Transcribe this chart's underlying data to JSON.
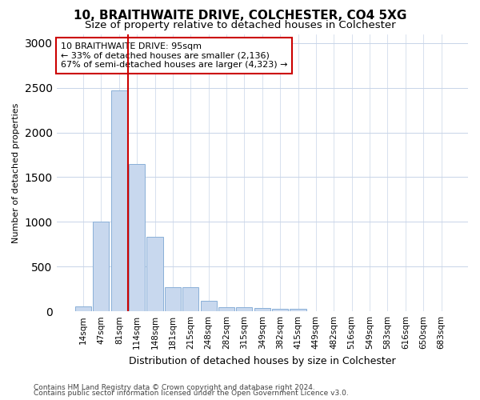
{
  "title1": "10, BRAITHWAITE DRIVE, COLCHESTER, CO4 5XG",
  "title2": "Size of property relative to detached houses in Colchester",
  "xlabel": "Distribution of detached houses by size in Colchester",
  "ylabel": "Number of detached properties",
  "categories": [
    "14sqm",
    "47sqm",
    "81sqm",
    "114sqm",
    "148sqm",
    "181sqm",
    "215sqm",
    "248sqm",
    "282sqm",
    "315sqm",
    "349sqm",
    "382sqm",
    "415sqm",
    "449sqm",
    "482sqm",
    "516sqm",
    "549sqm",
    "583sqm",
    "616sqm",
    "650sqm",
    "683sqm"
  ],
  "values": [
    55,
    1000,
    2470,
    1650,
    830,
    270,
    270,
    120,
    50,
    50,
    35,
    30,
    25,
    0,
    0,
    0,
    0,
    0,
    0,
    0,
    0
  ],
  "bar_color": "#c8d8ee",
  "bar_edge_color": "#8ab0d8",
  "vline_color": "#cc0000",
  "vline_x": 2.5,
  "annotation_line1": "10 BRAITHWAITE DRIVE: 95sqm",
  "annotation_line2": "← 33% of detached houses are smaller (2,136)",
  "annotation_line3": "67% of semi-detached houses are larger (4,323) →",
  "annotation_box_color": "#ffffff",
  "annotation_border_color": "#cc0000",
  "ylim": [
    0,
    3100
  ],
  "yticks": [
    0,
    500,
    1000,
    1500,
    2000,
    2500,
    3000
  ],
  "background_color": "#ffffff",
  "axes_bg_color": "#ffffff",
  "grid_color": "#c8d4e8",
  "footnote1": "Contains HM Land Registry data © Crown copyright and database right 2024.",
  "footnote2": "Contains public sector information licensed under the Open Government Licence v3.0.",
  "title1_fontsize": 11,
  "title2_fontsize": 9.5,
  "xlabel_fontsize": 9,
  "ylabel_fontsize": 8,
  "tick_fontsize": 7.5,
  "footnote_fontsize": 6.5
}
